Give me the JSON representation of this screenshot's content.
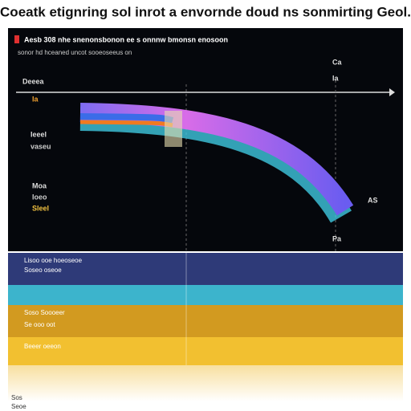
{
  "header": {
    "title": "Coeatk etignring sol inrot a envornde doud ns sonmirting Geol.",
    "line1": "Aesb 308 nhe snenonsbonon ee s onnnw bmonsn enosoon",
    "line2": "sonor hd hceaned uncot sooeoseeus on"
  },
  "left_labels": [
    "Deeea",
    "Ia",
    "Ieeel",
    "vaseu",
    "Moa",
    "Ioeo",
    "Sleel"
  ],
  "right_labels": [
    "Ca",
    "Ia",
    "AS",
    "Pa"
  ],
  "bands": [
    "Lisoo ooe hoeoseoe",
    "Soseo oseoe",
    "Soso Soooeer",
    "Se ooo oot",
    "Beeer oeeon"
  ],
  "footer": [
    "Sos",
    "Seoe"
  ]
}
